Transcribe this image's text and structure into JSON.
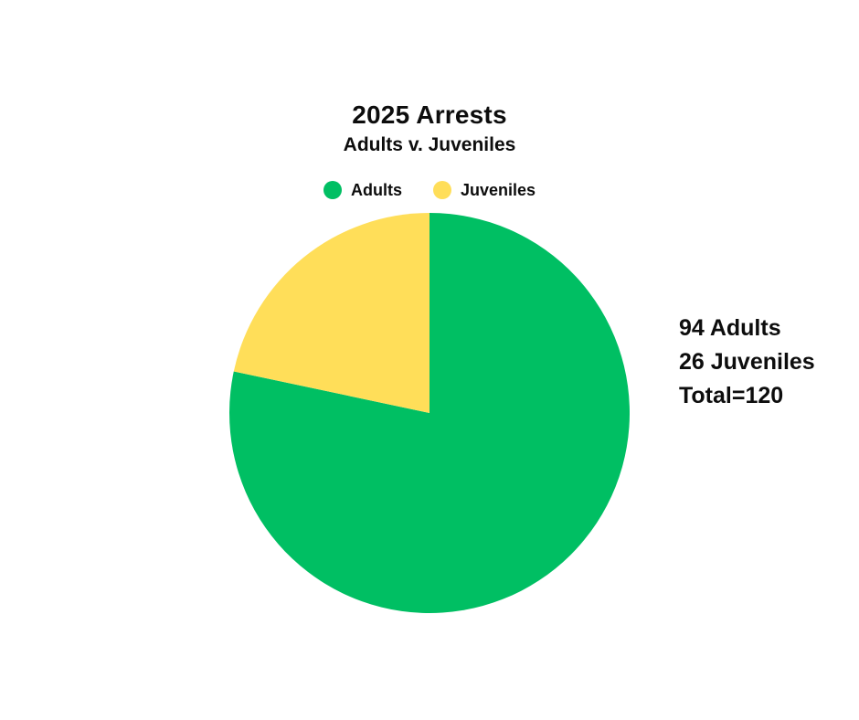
{
  "page": {
    "background": "#ffffff",
    "text_color": "#0d0d0d"
  },
  "header": {
    "title": "2025 Arrests",
    "subtitle": "Adults v. Juveniles"
  },
  "legend": {
    "items": [
      {
        "label": "Adults",
        "color": "#00BF63"
      },
      {
        "label": "Juveniles",
        "color": "#FFDE59"
      }
    ]
  },
  "annotation": {
    "lines": [
      "94 Adults",
      "26 Juveniles",
      "Total=120"
    ]
  },
  "chart_data": {
    "type": "pie",
    "title": "2025 Arrests",
    "subtitle": "Adults v. Juveniles",
    "labels": [
      "Adults",
      "Juveniles"
    ],
    "values": [
      94,
      26
    ],
    "colors": [
      "#00BF63",
      "#FFDE59"
    ],
    "total": 120,
    "percentages": [
      78.33,
      21.67
    ],
    "start_angle_deg": 0,
    "direction": "clockwise",
    "legend_position": "top",
    "annotation_text": "94 Adults\n26 Juveniles\nTotal=120"
  }
}
